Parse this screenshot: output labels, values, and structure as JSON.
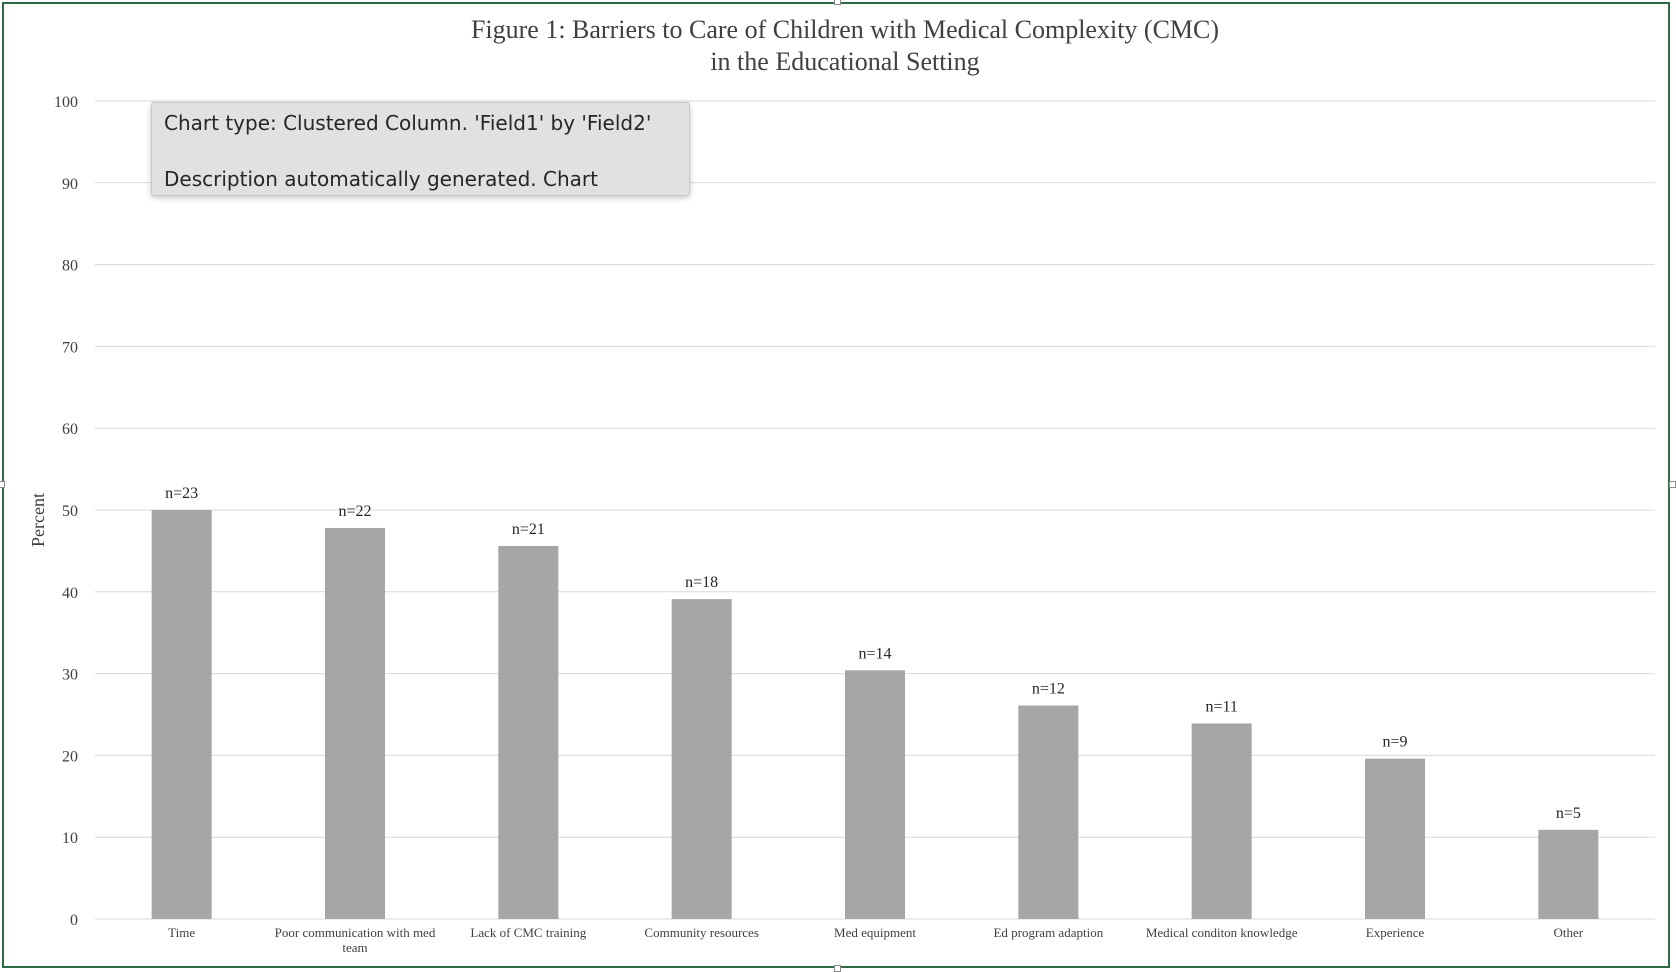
{
  "tooltip": {
    "line1": "Chart type: Clustered Column. 'Field1' by 'Field2'",
    "line2": "Description automatically generated. Chart"
  },
  "colors": {
    "bar": "#a6a6a6",
    "gridline": "#d9d9d9",
    "text": "#404040",
    "frame_border": "#2e6b45"
  },
  "chart_data": {
    "type": "bar",
    "title": [
      "Figure 1: Barriers to Care of Children with Medical Complexity (CMC)",
      "in the Educational Setting"
    ],
    "xlabel": "",
    "ylabel": "Percent",
    "ylim": [
      0,
      100
    ],
    "yticks": [
      0,
      10,
      20,
      30,
      40,
      50,
      60,
      70,
      80,
      90,
      100
    ],
    "grid": true,
    "legend": "none",
    "categories": [
      [
        "Time"
      ],
      [
        "Poor communication with med",
        "team"
      ],
      [
        "Lack of CMC training"
      ],
      [
        "Community resources"
      ],
      [
        "Med equipment"
      ],
      [
        "Ed program adaption"
      ],
      [
        "Medical conditon knowledge"
      ],
      [
        "Experience"
      ],
      [
        "Other"
      ]
    ],
    "values": [
      50,
      47.8,
      45.6,
      39.1,
      30.4,
      26.1,
      23.9,
      19.6,
      10.9
    ],
    "data_labels": [
      "n=23",
      "n=22",
      "n=21",
      "n=18",
      "n=14",
      "n=12",
      "n=11",
      "n=9",
      "n=5"
    ]
  }
}
